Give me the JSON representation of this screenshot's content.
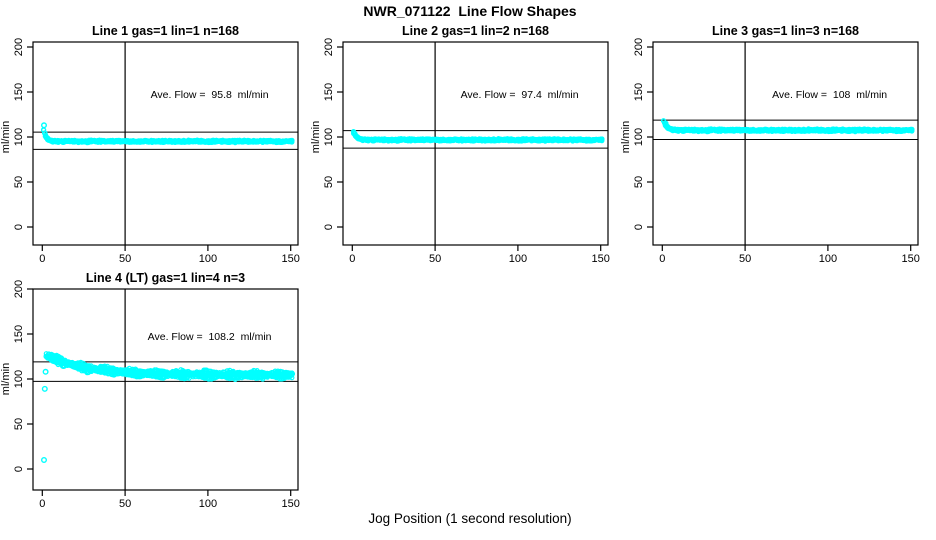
{
  "figure": {
    "title": "NWR_071122  Line Flow Shapes",
    "xlabel": "Jog Position (1 second resolution)",
    "ylabel": "ml/min",
    "background": "#FFFFFF",
    "point_color": "#00FFFF",
    "axis_color": "#000000"
  },
  "chart_data": [
    {
      "type": "scatter",
      "title": "Line 1 gas=1 lin=1 n=168",
      "line": 1,
      "gas": 1,
      "lin": 1,
      "n": 168,
      "annotation": "Ave. Flow =  95.8  ml/min",
      "ave_flow_ml_min": 95.8,
      "marker": "open-circle",
      "xlim": [
        0,
        155
      ],
      "ylim": [
        0,
        200
      ],
      "x_ticks": [
        0,
        50,
        100,
        150
      ],
      "y_ticks": [
        0,
        50,
        100,
        150,
        200
      ],
      "vline_x": 50,
      "hlines": [
        105.4,
        86.2
      ],
      "profile": {
        "t_start": 1,
        "t_end": 151,
        "start_flow": 107,
        "steady_flow": 95.2,
        "decay_tau_s": 1.6,
        "spread": 1.0,
        "traces": 2,
        "trace_offset": 0,
        "wiggle": 0.4
      },
      "outliers": [
        [
          1,
          113
        ]
      ],
      "grid": {
        "row": 0,
        "col": 0
      }
    },
    {
      "type": "scatter",
      "title": "Line 2 gas=1 lin=2 n=168",
      "line": 2,
      "gas": 1,
      "lin": 2,
      "n": 168,
      "annotation": "Ave. Flow =  97.4  ml/min",
      "ave_flow_ml_min": 97.4,
      "marker": "open-circle",
      "xlim": [
        0,
        155
      ],
      "ylim": [
        0,
        200
      ],
      "x_ticks": [
        0,
        50,
        100,
        150
      ],
      "y_ticks": [
        0,
        50,
        100,
        150,
        200
      ],
      "vline_x": 50,
      "hlines": [
        107.1,
        87.7
      ],
      "profile": {
        "t_start": 1,
        "t_end": 151,
        "start_flow": 105,
        "steady_flow": 96.8,
        "decay_tau_s": 2.0,
        "spread": 1.0,
        "traces": 2,
        "trace_offset": 0,
        "wiggle": 0.4
      },
      "outliers": [
        [
          1,
          104
        ]
      ],
      "grid": {
        "row": 0,
        "col": 1
      }
    },
    {
      "type": "scatter",
      "title": "Line 3 gas=1 lin=3 n=168",
      "line": 3,
      "gas": 1,
      "lin": 3,
      "n": 168,
      "annotation": "Ave. Flow =  108  ml/min",
      "ave_flow_ml_min": 108,
      "marker": "open-circle",
      "xlim": [
        0,
        155
      ],
      "ylim": [
        0,
        200
      ],
      "x_ticks": [
        0,
        50,
        100,
        150
      ],
      "y_ticks": [
        0,
        50,
        100,
        150,
        200
      ],
      "vline_x": 50,
      "hlines": [
        118.8,
        97.2
      ],
      "profile": {
        "t_start": 1,
        "t_end": 151,
        "start_flow": 117,
        "steady_flow": 107.5,
        "decay_tau_s": 2.2,
        "spread": 1.1,
        "traces": 2,
        "trace_offset": 0,
        "wiggle": 0.4
      },
      "outliers": [
        [
          2,
          115
        ]
      ],
      "grid": {
        "row": 0,
        "col": 2
      }
    },
    {
      "type": "scatter",
      "title": "Line 4 (LT) gas=1 lin=4 n=3",
      "line": 4,
      "line_note": "(LT)",
      "gas": 1,
      "lin": 4,
      "n": 3,
      "annotation": "Ave. Flow =  108.2  ml/min",
      "ave_flow_ml_min": 108.2,
      "marker": "open-circle",
      "xlim": [
        0,
        155
      ],
      "ylim": [
        0,
        200
      ],
      "x_ticks": [
        0,
        50,
        100,
        150
      ],
      "y_ticks": [
        0,
        50,
        100,
        150,
        200
      ],
      "vline_x": 50,
      "hlines": [
        119.0,
        97.4
      ],
      "profile": {
        "t_start": 2.5,
        "t_end": 151,
        "start_flow": 126,
        "steady_flow": 104.5,
        "decay_tau_s": 24,
        "spread": 1.8,
        "traces": 3,
        "trace_offset": 2.0,
        "wiggle": 1.4
      },
      "outliers": [
        [
          1,
          10
        ],
        [
          1.5,
          89
        ],
        [
          2,
          108
        ]
      ],
      "grid": {
        "row": 1,
        "col": 0
      }
    }
  ]
}
